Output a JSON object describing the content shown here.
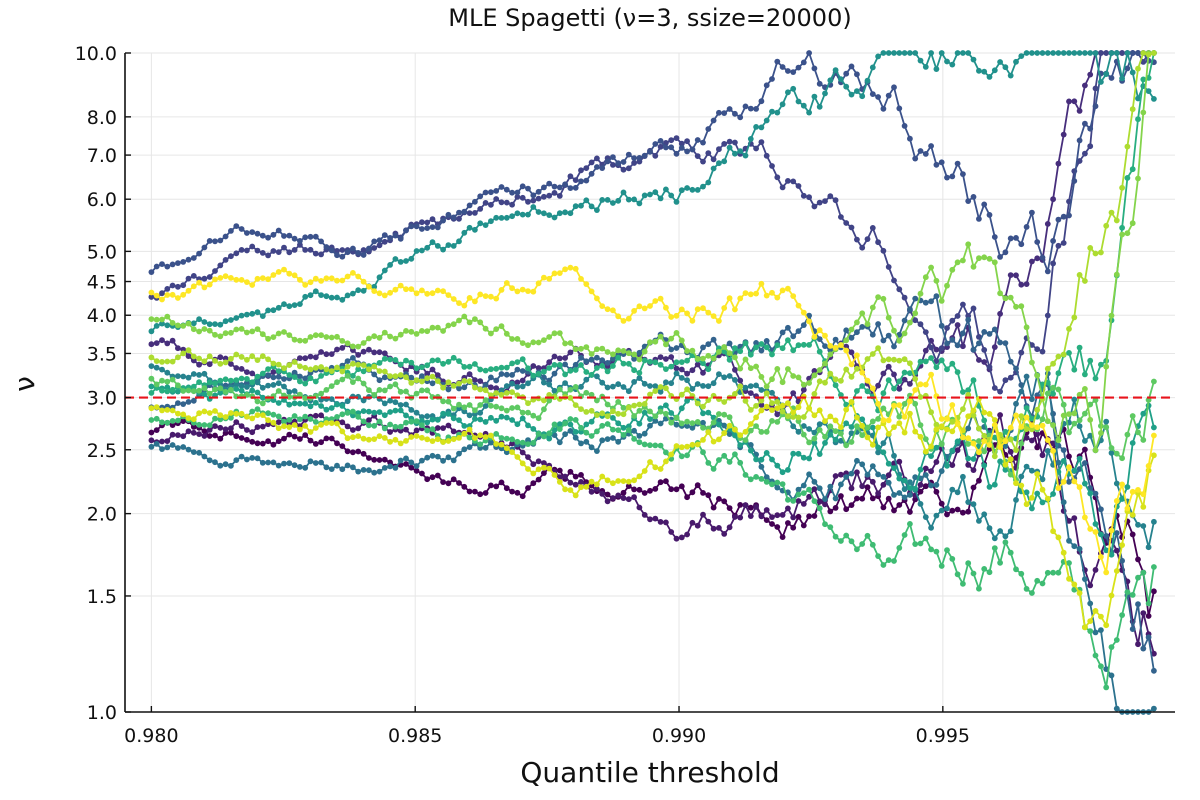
{
  "chart_data": {
    "type": "line",
    "title": "MLE Spagetti (ν=3, ssize=20000)",
    "xlabel": "Quantile threshold",
    "ylabel": "ν",
    "xlim": [
      0.9795,
      0.9994
    ],
    "ylim": [
      1.0,
      10.0
    ],
    "y_scale": "log",
    "x_ticks": [
      "0.980",
      "0.985",
      "0.990",
      "0.995"
    ],
    "x_tick_values": [
      0.98,
      0.985,
      0.99,
      0.995
    ],
    "y_ticks": [
      "1.0",
      "1.5",
      "2.0",
      "2.5",
      "3.0",
      "3.5",
      "4.0",
      "4.5",
      "5.0",
      "6.0",
      "7.0",
      "8.0",
      "10.0"
    ],
    "y_tick_values": [
      1.0,
      1.5,
      2.0,
      2.5,
      3.0,
      3.5,
      4.0,
      4.5,
      5.0,
      6.0,
      7.0,
      8.0,
      10.0
    ],
    "grid": true,
    "legend": "none",
    "reference_line": {
      "y": 3.0,
      "color": "#e8141c",
      "style": "dashed"
    },
    "x_range": [
      0.98,
      0.999
    ],
    "series": [
      {
        "color": "#440154",
        "x": [
          0.98,
          0.982,
          0.984,
          0.986,
          0.988,
          0.99,
          0.992,
          0.994,
          0.996,
          0.997,
          0.998,
          0.999
        ],
        "values": [
          2.7,
          2.65,
          2.5,
          2.2,
          2.25,
          2.1,
          2.0,
          2.1,
          2.35,
          2.3,
          1.9,
          1.4
        ]
      },
      {
        "color": "#481a6c",
        "x": [
          0.98,
          0.982,
          0.984,
          0.986,
          0.988,
          0.99,
          0.992,
          0.994,
          0.996,
          0.997,
          0.998,
          0.999
        ],
        "values": [
          2.6,
          2.75,
          2.8,
          2.6,
          2.35,
          1.95,
          2.05,
          2.25,
          2.45,
          2.6,
          1.6,
          1.3
        ]
      },
      {
        "color": "#472e7c",
        "x": [
          0.98,
          0.982,
          0.984,
          0.986,
          0.988,
          0.99,
          0.992,
          0.994,
          0.996,
          0.997,
          0.998,
          0.999
        ],
        "values": [
          3.6,
          3.3,
          3.5,
          3.2,
          3.4,
          3.3,
          3.0,
          3.2,
          3.6,
          5.5,
          10.0,
          10.0
        ]
      },
      {
        "color": "#414487",
        "x": [
          0.98,
          0.982,
          0.984,
          0.986,
          0.988,
          0.99,
          0.992,
          0.994,
          0.996,
          0.997,
          0.998,
          0.999
        ],
        "values": [
          4.2,
          4.9,
          5.2,
          5.6,
          6.5,
          7.5,
          6.5,
          5.0,
          3.5,
          4.5,
          10.0,
          10.0
        ]
      },
      {
        "color": "#3b528b",
        "x": [
          0.98,
          0.982,
          0.984,
          0.986,
          0.988,
          0.99,
          0.992,
          0.994,
          0.996,
          0.997,
          0.998,
          0.999
        ],
        "values": [
          4.7,
          5.4,
          5.0,
          5.9,
          6.2,
          7.0,
          10.0,
          8.2,
          5.5,
          4.8,
          10.0,
          10.0
        ]
      },
      {
        "color": "#33638d",
        "x": [
          0.98,
          0.982,
          0.984,
          0.986,
          0.988,
          0.99,
          0.992,
          0.994,
          0.996,
          0.997,
          0.998,
          0.999
        ],
        "values": [
          2.9,
          3.2,
          3.3,
          3.1,
          3.4,
          3.5,
          3.6,
          3.8,
          3.3,
          2.8,
          2.2,
          1.3
        ]
      },
      {
        "color": "#2c728e",
        "x": [
          0.98,
          0.982,
          0.984,
          0.986,
          0.988,
          0.99,
          0.992,
          0.994,
          0.996,
          0.997,
          0.998,
          0.999
        ],
        "values": [
          2.5,
          2.45,
          2.4,
          2.5,
          2.6,
          2.7,
          2.4,
          2.2,
          2.6,
          3.0,
          1.2,
          1.0
        ]
      },
      {
        "color": "#26828e",
        "x": [
          0.98,
          0.982,
          0.984,
          0.986,
          0.988,
          0.99,
          0.992,
          0.994,
          0.996,
          0.997,
          0.998,
          0.999
        ],
        "values": [
          3.4,
          3.1,
          3.0,
          2.9,
          3.1,
          3.3,
          3.0,
          2.5,
          2.0,
          2.3,
          2.8,
          2.1
        ]
      },
      {
        "color": "#21918c",
        "x": [
          0.98,
          0.982,
          0.984,
          0.986,
          0.988,
          0.99,
          0.992,
          0.994,
          0.996,
          0.997,
          0.998,
          0.999
        ],
        "values": [
          3.8,
          4.0,
          4.5,
          5.3,
          6.0,
          6.3,
          8.0,
          10.0,
          10.0,
          10.0,
          10.0,
          10.0
        ]
      },
      {
        "color": "#1fa088",
        "x": [
          0.98,
          0.982,
          0.984,
          0.986,
          0.988,
          0.99,
          0.992,
          0.994,
          0.996,
          0.997,
          0.998,
          0.999
        ],
        "values": [
          3.1,
          3.0,
          2.9,
          2.8,
          2.7,
          2.9,
          2.6,
          2.5,
          2.4,
          2.2,
          2.0,
          2.8
        ]
      },
      {
        "color": "#28ae80",
        "x": [
          0.98,
          0.982,
          0.984,
          0.986,
          0.988,
          0.99,
          0.992,
          0.994,
          0.996,
          0.997,
          0.998,
          0.999
        ],
        "values": [
          3.0,
          3.2,
          3.3,
          3.4,
          3.1,
          3.6,
          3.5,
          3.1,
          2.8,
          3.5,
          3.0,
          10.0
        ]
      },
      {
        "color": "#3fbc73",
        "x": [
          0.98,
          0.982,
          0.984,
          0.986,
          0.988,
          0.99,
          0.992,
          0.994,
          0.996,
          0.997,
          0.998,
          0.999
        ],
        "values": [
          2.8,
          2.9,
          2.7,
          2.6,
          2.8,
          2.6,
          2.2,
          1.6,
          1.8,
          1.6,
          1.2,
          1.5
        ]
      },
      {
        "color": "#5ec962",
        "x": [
          0.98,
          0.982,
          0.984,
          0.986,
          0.988,
          0.99,
          0.992,
          0.994,
          0.996,
          0.997,
          0.998,
          0.999
        ],
        "values": [
          3.2,
          3.0,
          3.1,
          2.9,
          3.0,
          2.8,
          2.7,
          2.8,
          2.6,
          2.9,
          2.4,
          3.1
        ]
      },
      {
        "color": "#84d44b",
        "x": [
          0.98,
          0.982,
          0.984,
          0.986,
          0.988,
          0.99,
          0.992,
          0.994,
          0.996,
          0.997,
          0.998,
          0.999
        ],
        "values": [
          3.9,
          3.7,
          3.6,
          3.8,
          3.5,
          3.6,
          3.3,
          3.9,
          4.5,
          2.9,
          2.7,
          10.0
        ]
      },
      {
        "color": "#addc30",
        "x": [
          0.98,
          0.982,
          0.984,
          0.986,
          0.988,
          0.99,
          0.992,
          0.994,
          0.996,
          0.997,
          0.998,
          0.999
        ],
        "values": [
          3.5,
          3.4,
          3.3,
          3.1,
          3.0,
          3.0,
          2.9,
          3.2,
          2.7,
          3.3,
          6.0,
          10.0
        ]
      },
      {
        "color": "#d8e219",
        "x": [
          0.98,
          0.982,
          0.984,
          0.986,
          0.988,
          0.99,
          0.992,
          0.994,
          0.996,
          0.997,
          0.998,
          0.999
        ],
        "values": [
          2.9,
          2.8,
          2.6,
          2.6,
          2.2,
          2.5,
          2.8,
          2.9,
          2.7,
          2.3,
          1.4,
          2.4
        ]
      },
      {
        "color": "#fde725",
        "x": [
          0.98,
          0.982,
          0.984,
          0.986,
          0.988,
          0.99,
          0.992,
          0.994,
          0.996,
          0.997,
          0.998,
          0.999
        ],
        "values": [
          4.3,
          4.5,
          4.5,
          4.4,
          4.5,
          3.9,
          4.3,
          3.0,
          2.6,
          2.4,
          1.8,
          2.5
        ]
      }
    ]
  }
}
